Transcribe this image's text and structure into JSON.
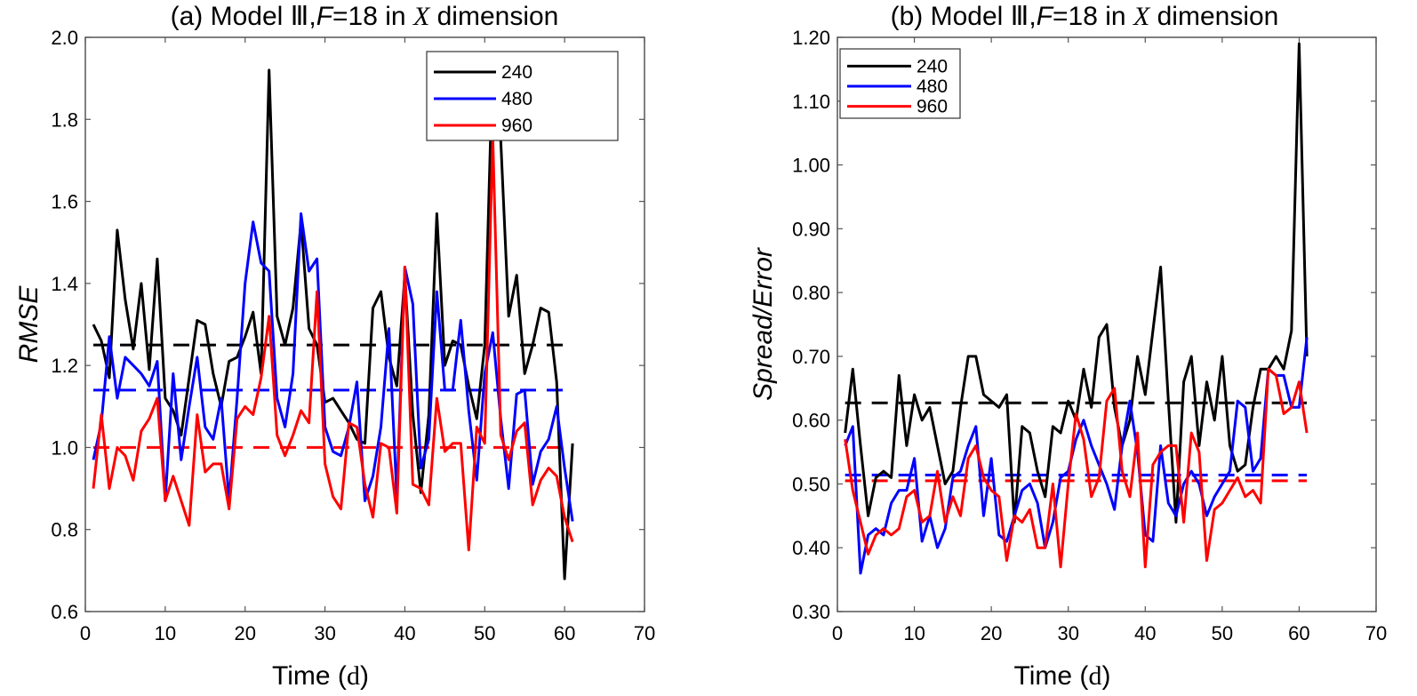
{
  "chart_data": [
    {
      "id": "a",
      "type": "line",
      "title": {
        "prefix": "(a) Model ",
        "model_numeral": "Ⅲ",
        "sep": ",",
        "F_symbol": "F",
        "F_value": "=18 in ",
        "dim_symbol": "X",
        "suffix": " dimension"
      },
      "xlabel": {
        "text": "Time (",
        "unit": "d",
        "close": ")"
      },
      "ylabel": "RMSE",
      "xlim": [
        0,
        70
      ],
      "ylim": [
        0.6,
        2.0
      ],
      "xticks": [
        0,
        10,
        20,
        30,
        40,
        50,
        60,
        70
      ],
      "yticks": [
        0.6,
        0.8,
        1.0,
        1.2,
        1.4,
        1.6,
        1.8,
        2.0
      ],
      "ytick_labels": [
        "0.6",
        "0.8",
        "1.0",
        "1.2",
        "1.4",
        "1.6",
        "1.8",
        "2.0"
      ],
      "grid": false,
      "legend_position": "top-right",
      "x": [
        1,
        2,
        3,
        4,
        5,
        6,
        7,
        8,
        9,
        10,
        11,
        12,
        13,
        14,
        15,
        16,
        17,
        18,
        19,
        20,
        21,
        22,
        23,
        24,
        25,
        26,
        27,
        28,
        29,
        30,
        31,
        32,
        33,
        34,
        35,
        36,
        37,
        38,
        39,
        40,
        41,
        42,
        43,
        44,
        45,
        46,
        47,
        48,
        49,
        50,
        51,
        52,
        53,
        54,
        55,
        56,
        57,
        58,
        59,
        60,
        61
      ],
      "series": [
        {
          "name": "240",
          "color": "#000000",
          "mean": 1.25,
          "values": [
            1.3,
            1.26,
            1.17,
            1.53,
            1.36,
            1.24,
            1.4,
            1.19,
            1.46,
            1.12,
            1.09,
            1.03,
            1.17,
            1.31,
            1.3,
            1.18,
            1.1,
            1.21,
            1.22,
            1.27,
            1.33,
            1.18,
            1.92,
            1.32,
            1.25,
            1.34,
            1.55,
            1.29,
            1.25,
            1.11,
            1.12,
            1.09,
            1.06,
            1.02,
            1.01,
            1.34,
            1.38,
            1.22,
            1.15,
            1.42,
            1.08,
            0.89,
            1.08,
            1.57,
            1.2,
            1.26,
            1.25,
            1.15,
            1.07,
            1.25,
            1.95,
            1.75,
            1.32,
            1.42,
            1.18,
            1.25,
            1.34,
            1.33,
            1.16,
            0.68,
            1.01
          ]
        },
        {
          "name": "480",
          "color": "#0000ff",
          "mean": 1.14,
          "values": [
            0.97,
            1.06,
            1.27,
            1.12,
            1.22,
            1.2,
            1.18,
            1.15,
            1.21,
            0.87,
            1.18,
            0.97,
            1.1,
            1.22,
            1.05,
            1.02,
            1.12,
            0.87,
            1.12,
            1.4,
            1.55,
            1.45,
            1.43,
            1.12,
            1.05,
            1.18,
            1.57,
            1.43,
            1.46,
            1.05,
            0.99,
            0.98,
            1.05,
            1.16,
            0.87,
            0.93,
            1.05,
            1.29,
            0.88,
            1.44,
            1.35,
            0.95,
            1.02,
            1.38,
            1.14,
            1.14,
            1.31,
            1.09,
            0.92,
            1.18,
            1.28,
            1.07,
            0.9,
            1.13,
            1.14,
            0.91,
            0.99,
            1.02,
            1.1,
            0.95,
            0.82
          ]
        },
        {
          "name": "960",
          "color": "#ff0000",
          "mean": 1.0,
          "values": [
            0.9,
            1.08,
            0.9,
            1.0,
            0.98,
            0.92,
            1.04,
            1.07,
            1.12,
            0.87,
            0.93,
            0.87,
            0.81,
            1.08,
            0.94,
            0.96,
            0.96,
            0.85,
            1.07,
            1.1,
            1.08,
            1.17,
            1.32,
            1.03,
            0.98,
            1.03,
            1.09,
            1.06,
            1.38,
            0.96,
            0.88,
            0.85,
            1.06,
            1.05,
            0.91,
            0.83,
            1.01,
            1.0,
            0.84,
            1.44,
            0.91,
            0.9,
            0.86,
            1.12,
            0.99,
            1.01,
            1.01,
            0.75,
            1.05,
            1.01,
            1.76,
            1.03,
            0.97,
            1.04,
            1.06,
            0.86,
            0.92,
            0.95,
            0.93,
            0.83,
            0.77
          ]
        }
      ]
    },
    {
      "id": "b",
      "type": "line",
      "title": {
        "prefix": "(b) Model ",
        "model_numeral": "Ⅲ",
        "sep": ",",
        "F_symbol": "F",
        "F_value": "=18 in ",
        "dim_symbol": "X",
        "suffix": " dimension"
      },
      "xlabel": {
        "text": "Time (",
        "unit": "d",
        "close": ")"
      },
      "ylabel": "Spread/Error",
      "xlim": [
        0,
        70
      ],
      "ylim": [
        0.3,
        1.2
      ],
      "xticks": [
        0,
        10,
        20,
        30,
        40,
        50,
        60,
        70
      ],
      "yticks": [
        0.3,
        0.4,
        0.5,
        0.6,
        0.7,
        0.8,
        0.9,
        1.0,
        1.1,
        1.2
      ],
      "ytick_labels": [
        "0.30",
        "0.40",
        "0.50",
        "0.60",
        "0.70",
        "0.80",
        "0.90",
        "1.00",
        "1.10",
        "1.20"
      ],
      "grid": false,
      "legend_position": "top-left",
      "x": [
        1,
        2,
        3,
        4,
        5,
        6,
        7,
        8,
        9,
        10,
        11,
        12,
        13,
        14,
        15,
        16,
        17,
        18,
        19,
        20,
        21,
        22,
        23,
        24,
        25,
        26,
        27,
        28,
        29,
        30,
        31,
        32,
        33,
        34,
        35,
        36,
        37,
        38,
        39,
        40,
        41,
        42,
        43,
        44,
        45,
        46,
        47,
        48,
        49,
        50,
        51,
        52,
        53,
        54,
        55,
        56,
        57,
        58,
        59,
        60,
        61
      ],
      "series": [
        {
          "name": "240",
          "color": "#000000",
          "mean": 0.627,
          "values": [
            0.58,
            0.68,
            0.56,
            0.45,
            0.51,
            0.52,
            0.51,
            0.67,
            0.56,
            0.64,
            0.6,
            0.62,
            0.56,
            0.5,
            0.52,
            0.62,
            0.7,
            0.7,
            0.64,
            0.63,
            0.62,
            0.64,
            0.44,
            0.59,
            0.58,
            0.52,
            0.48,
            0.59,
            0.58,
            0.63,
            0.6,
            0.68,
            0.62,
            0.73,
            0.75,
            0.62,
            0.56,
            0.6,
            0.7,
            0.64,
            0.74,
            0.84,
            0.63,
            0.44,
            0.66,
            0.7,
            0.56,
            0.66,
            0.6,
            0.7,
            0.56,
            0.52,
            0.53,
            0.62,
            0.68,
            0.68,
            0.7,
            0.68,
            0.74,
            1.19,
            0.7
          ]
        },
        {
          "name": "480",
          "color": "#0000ff",
          "mean": 0.514,
          "values": [
            0.56,
            0.59,
            0.36,
            0.42,
            0.43,
            0.42,
            0.47,
            0.49,
            0.49,
            0.54,
            0.41,
            0.45,
            0.4,
            0.43,
            0.51,
            0.52,
            0.56,
            0.59,
            0.45,
            0.54,
            0.42,
            0.41,
            0.45,
            0.49,
            0.5,
            0.47,
            0.4,
            0.44,
            0.51,
            0.52,
            0.57,
            0.6,
            0.56,
            0.53,
            0.5,
            0.46,
            0.56,
            0.63,
            0.55,
            0.42,
            0.41,
            0.56,
            0.47,
            0.45,
            0.5,
            0.52,
            0.5,
            0.45,
            0.48,
            0.5,
            0.52,
            0.63,
            0.62,
            0.52,
            0.54,
            0.68,
            0.67,
            0.67,
            0.62,
            0.62,
            0.73
          ]
        },
        {
          "name": "960",
          "color": "#ff0000",
          "mean": 0.505,
          "values": [
            0.57,
            0.49,
            0.44,
            0.39,
            0.42,
            0.43,
            0.42,
            0.43,
            0.48,
            0.49,
            0.44,
            0.45,
            0.52,
            0.44,
            0.48,
            0.45,
            0.54,
            0.56,
            0.51,
            0.49,
            0.48,
            0.38,
            0.45,
            0.44,
            0.46,
            0.4,
            0.4,
            0.5,
            0.37,
            0.5,
            0.61,
            0.57,
            0.48,
            0.51,
            0.63,
            0.65,
            0.52,
            0.48,
            0.58,
            0.37,
            0.53,
            0.55,
            0.56,
            0.56,
            0.44,
            0.58,
            0.55,
            0.38,
            0.46,
            0.47,
            0.49,
            0.51,
            0.48,
            0.49,
            0.47,
            0.68,
            0.67,
            0.61,
            0.62,
            0.66,
            0.58
          ]
        }
      ]
    }
  ]
}
